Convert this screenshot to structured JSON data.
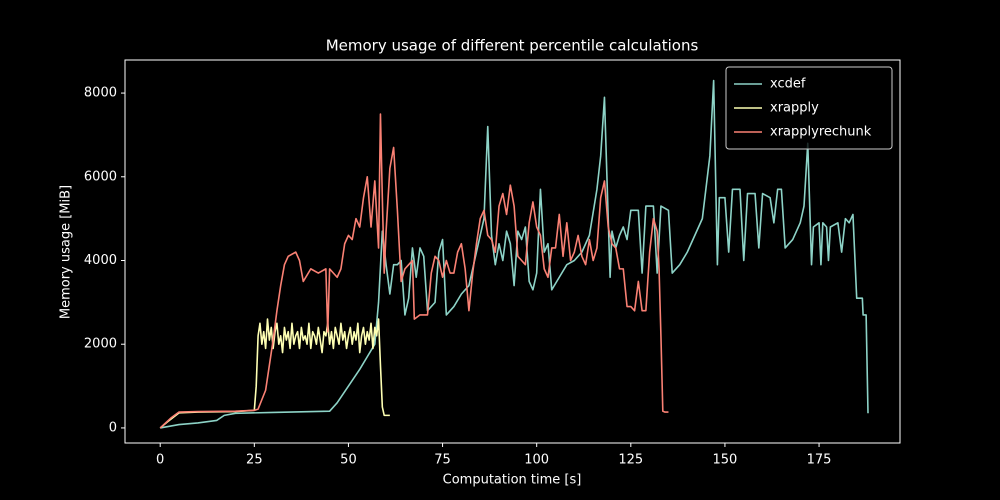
{
  "chart_data": {
    "type": "line",
    "title": "Memory usage of different percentile calculations",
    "xlabel": "Computation time [s]",
    "ylabel": "Memory usage [MiB]",
    "xlim": [
      -9.35,
      196.5
    ],
    "ylim": [
      -360,
      8790
    ],
    "xticks": [
      0,
      25,
      50,
      75,
      100,
      125,
      150,
      175
    ],
    "yticks": [
      0,
      2000,
      4000,
      6000,
      8000
    ],
    "grid": false,
    "legend": "upper right",
    "series": [
      {
        "name": "xcdef",
        "color": "#8dd3c7",
        "x": [
          0,
          5,
          10,
          15,
          17,
          20,
          30,
          45,
          47,
          50,
          53,
          55,
          57,
          58,
          59,
          60,
          61,
          62,
          63,
          64,
          65,
          66,
          67,
          68,
          69,
          70,
          71,
          73,
          74,
          75,
          76,
          78,
          80,
          82,
          84,
          86,
          87,
          88,
          89,
          90,
          91,
          92,
          93,
          94,
          95,
          96,
          97,
          98,
          99,
          100,
          101,
          102,
          103,
          104,
          106,
          108,
          110,
          112,
          114,
          116,
          117,
          118,
          119,
          119.5,
          120,
          121,
          122,
          123,
          124,
          125,
          127,
          128,
          129,
          131,
          132,
          133,
          135,
          136,
          138,
          140,
          142,
          144,
          146,
          147,
          148,
          148.5,
          150,
          151,
          152,
          154,
          155,
          156,
          158,
          159,
          160,
          162,
          163,
          164,
          165,
          166,
          168,
          170,
          171,
          172,
          173,
          173.5,
          175,
          175.5,
          176,
          177,
          177.5,
          178,
          180,
          181,
          182,
          183,
          184,
          185,
          186.5,
          186.7,
          187.5,
          188
        ],
        "values": [
          0,
          80,
          120,
          180,
          300,
          350,
          370,
          400,
          600,
          1000,
          1400,
          1700,
          2000,
          3000,
          4700,
          3900,
          3200,
          3900,
          3900,
          4000,
          2700,
          3100,
          4300,
          3600,
          4300,
          4100,
          2800,
          3000,
          4200,
          4500,
          2700,
          2900,
          3200,
          3400,
          4200,
          5000,
          7200,
          4600,
          3900,
          4400,
          4000,
          4700,
          4400,
          3400,
          4700,
          4500,
          4800,
          3500,
          3300,
          3700,
          5700,
          4200,
          4400,
          3300,
          3600,
          3900,
          4000,
          4200,
          4600,
          5700,
          6500,
          7900,
          5000,
          3600,
          4700,
          4300,
          4600,
          4800,
          4500,
          5200,
          5200,
          3700,
          5300,
          5300,
          3700,
          5300,
          5200,
          3700,
          3900,
          4200,
          4600,
          5000,
          6500,
          8300,
          3900,
          5500,
          5500,
          4200,
          5700,
          5700,
          4000,
          5600,
          5600,
          4300,
          5600,
          5500,
          4900,
          5700,
          5700,
          4300,
          4500,
          4900,
          5300,
          6800,
          3900,
          4800,
          4900,
          3900,
          4900,
          4800,
          4000,
          4800,
          4900,
          4200,
          5000,
          4900,
          5100,
          3100,
          3100,
          2700,
          2700,
          350
        ]
      },
      {
        "name": "xrapply",
        "color": "#feffb3",
        "x": [
          0,
          2,
          5,
          10,
          20,
          25,
          25.5,
          26,
          26.5,
          27,
          27.5,
          28,
          28.5,
          29,
          29.5,
          30,
          30.5,
          31,
          31.5,
          32,
          32.5,
          33,
          33.5,
          34,
          34.5,
          35,
          35.5,
          36,
          36.5,
          37,
          37.5,
          38,
          38.5,
          39,
          39.5,
          40,
          40.5,
          41,
          41.5,
          42,
          42.5,
          43,
          43.5,
          44,
          44.5,
          45,
          45.5,
          46,
          46.5,
          47,
          47.5,
          48,
          48.5,
          49,
          49.5,
          50,
          50.5,
          51,
          51.5,
          52,
          52.5,
          53,
          53.5,
          54,
          54.5,
          55,
          55.5,
          56,
          56.5,
          57,
          57.5,
          58,
          58.5,
          59,
          59.5,
          61
        ],
        "values": [
          0,
          150,
          360,
          380,
          390,
          420,
          1000,
          2200,
          2500,
          2000,
          2300,
          1900,
          2600,
          2100,
          2400,
          1900,
          2300,
          2500,
          2000,
          2200,
          1800,
          2400,
          2100,
          2300,
          1900,
          2500,
          2000,
          2200,
          2300,
          1900,
          2400,
          2100,
          2200,
          2000,
          2500,
          1900,
          2300,
          2200,
          2000,
          2400,
          2100,
          1800,
          2300,
          2200,
          2500,
          2000,
          2300,
          1900,
          2400,
          2200,
          2000,
          2500,
          2100,
          2300,
          1900,
          2200,
          2400,
          2000,
          2300,
          2100,
          2500,
          1800,
          2200,
          2400,
          2000,
          2300,
          2100,
          2500,
          1900,
          2400,
          2200,
          2600,
          1500,
          500,
          300,
          300
        ]
      },
      {
        "name": "xrapplyrechunk",
        "color": "#fa8174",
        "x": [
          0,
          3,
          5,
          10,
          20,
          25,
          26,
          28,
          30,
          31,
          32,
          33,
          34,
          36,
          37,
          38,
          40,
          42,
          44,
          44.5,
          45,
          47,
          48,
          49,
          50,
          51,
          52,
          53,
          54,
          55,
          56,
          57,
          58,
          58.5,
          59,
          59.5,
          60,
          61,
          62,
          63,
          64,
          65,
          66,
          67,
          67.5,
          69,
          71,
          72,
          73,
          74,
          75,
          76,
          77,
          78,
          79,
          80,
          81,
          82,
          83,
          84,
          85,
          86,
          87,
          88,
          89,
          90,
          91,
          92,
          93,
          94,
          95,
          96,
          97,
          98,
          99,
          100,
          101,
          102,
          103,
          104,
          105,
          106,
          107,
          108,
          109,
          110,
          111,
          112,
          113,
          114,
          115,
          116,
          117,
          118,
          119,
          120,
          121,
          122,
          123,
          124,
          125,
          126,
          127,
          128,
          129,
          130,
          131,
          132,
          132.5,
          133,
          133.5,
          134,
          135
        ],
        "values": [
          0,
          250,
          380,
          390,
          400,
          420,
          450,
          900,
          2100,
          2800,
          3400,
          3900,
          4100,
          4200,
          4000,
          3500,
          3800,
          3700,
          3800,
          2300,
          3800,
          3600,
          3800,
          4400,
          4600,
          4500,
          5000,
          4800,
          5500,
          6000,
          4800,
          5900,
          4300,
          7500,
          5500,
          3700,
          4700,
          6200,
          6700,
          5200,
          3500,
          3800,
          3900,
          4000,
          2600,
          2700,
          2700,
          3700,
          4100,
          4000,
          3600,
          4000,
          3700,
          3700,
          4200,
          4400,
          3800,
          2800,
          3700,
          4400,
          5000,
          5200,
          4600,
          4500,
          4200,
          5300,
          5600,
          5100,
          5800,
          5300,
          4100,
          4000,
          3900,
          4900,
          5400,
          4800,
          4600,
          3800,
          3600,
          4300,
          4300,
          5100,
          4100,
          4900,
          4000,
          4200,
          4600,
          4100,
          3900,
          4500,
          4000,
          4300,
          5500,
          5900,
          4800,
          4400,
          4300,
          3800,
          3800,
          2900,
          2900,
          2800,
          3500,
          2800,
          2800,
          4200,
          5000,
          4700,
          3800,
          2200,
          400,
          380,
          380
        ]
      }
    ]
  }
}
